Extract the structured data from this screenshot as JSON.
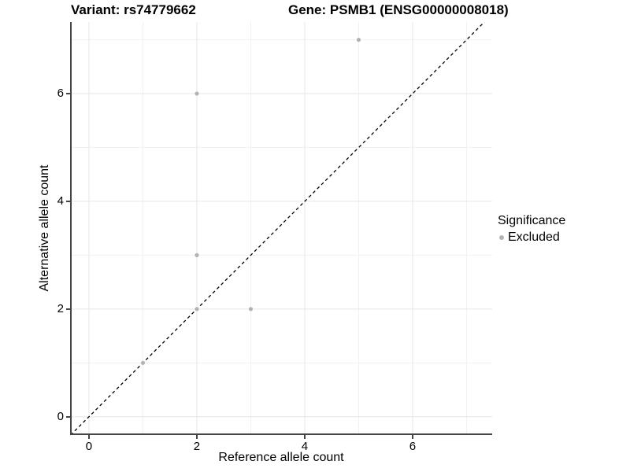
{
  "header": {
    "title_left": "Variant: rs74779662",
    "title_right": "Gene: PSMB1 (ENSG00000008018)"
  },
  "chart_data": {
    "type": "scatter",
    "title_left": "Variant: rs74779662",
    "title_right": "Gene: PSMB1 (ENSG00000008018)",
    "xlabel": "Reference allele count",
    "ylabel": "Alternative allele count",
    "xlim": [
      -0.35,
      7.475
    ],
    "ylim": [
      -0.34,
      7.33
    ],
    "x_ticks": [
      0,
      2,
      4,
      6
    ],
    "y_ticks": [
      0,
      2,
      4,
      6
    ],
    "x_minor_gridlines": [
      1,
      3,
      5,
      7
    ],
    "y_minor_gridlines": [
      1,
      3,
      5,
      7
    ],
    "grid": true,
    "series": [
      {
        "name": "Excluded",
        "marker": "circle",
        "color": "#b3b3b3",
        "points": [
          [
            1,
            1
          ],
          [
            2,
            2
          ],
          [
            2,
            3
          ],
          [
            2,
            6
          ],
          [
            3,
            2
          ],
          [
            5,
            7
          ]
        ]
      }
    ],
    "reference_line": {
      "equation": "y = x",
      "style": "dashed",
      "color": "#000000"
    },
    "legend": {
      "title": "Significance",
      "position": "right",
      "entries": [
        {
          "label": "Excluded",
          "color": "#b3b3b3",
          "marker": "circle"
        }
      ]
    }
  },
  "colors": {
    "background": "#ffffff",
    "grid_major": "#e6e6e6",
    "grid_minor": "#f1f1f1",
    "axis_line": "#454545",
    "point": "#b3b3b3",
    "text": "#000000"
  }
}
